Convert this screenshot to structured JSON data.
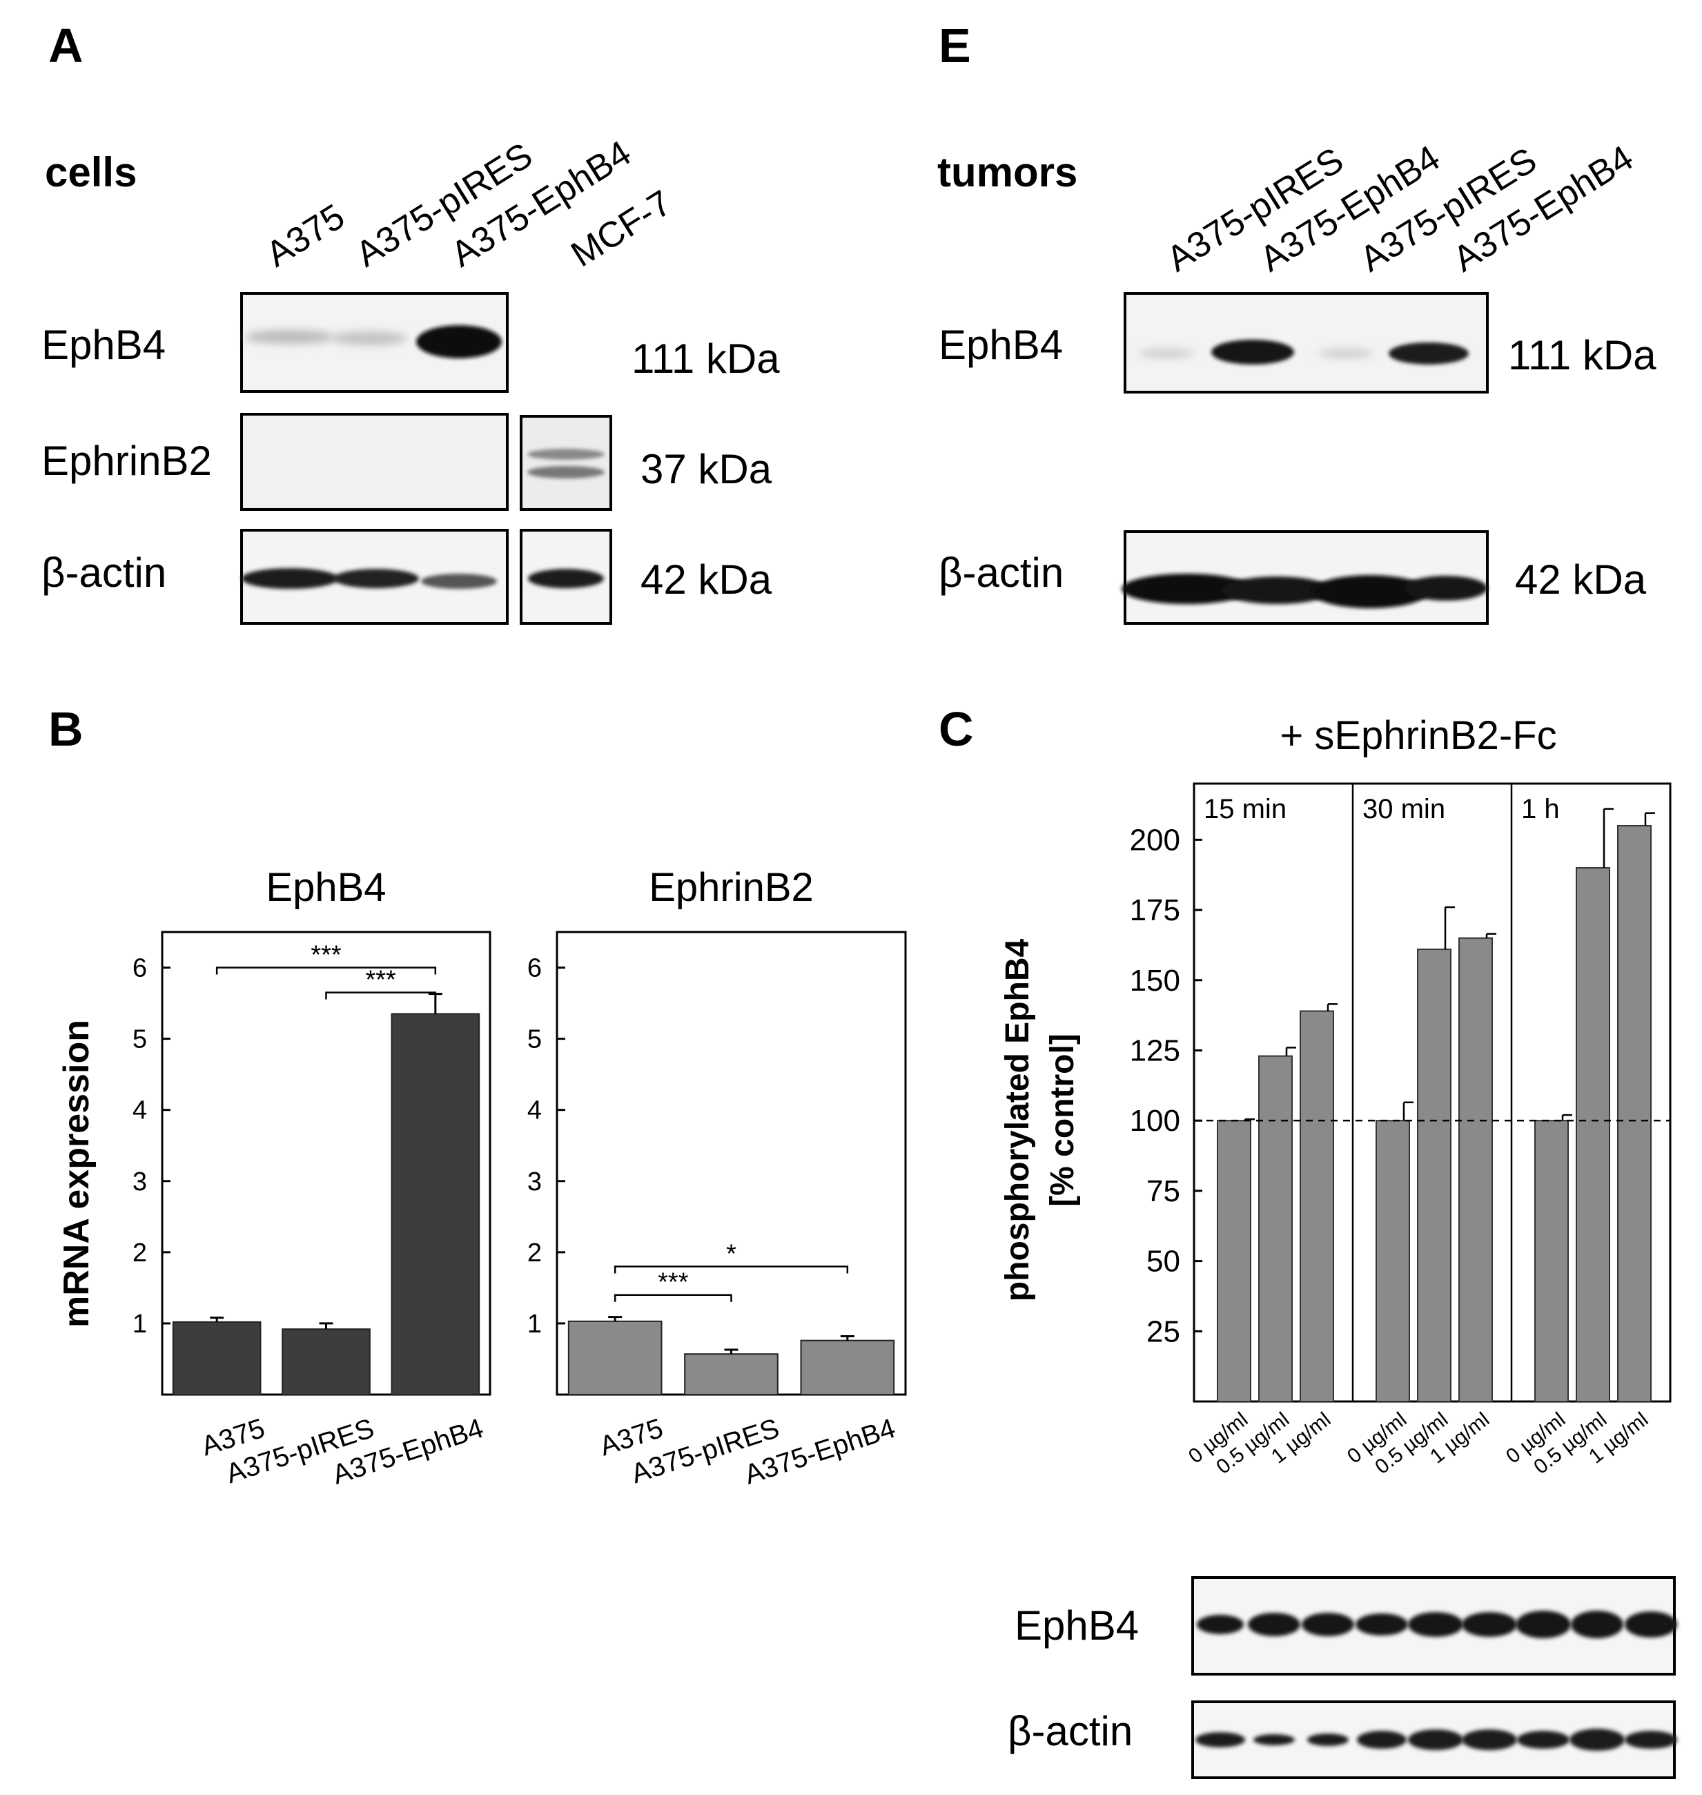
{
  "panels": {
    "A": {
      "label": "A",
      "group_label": "cells",
      "lanes": [
        "A375",
        "A375-pIRES",
        "A375-EphB4",
        "MCF-7"
      ],
      "rows": [
        {
          "name": "EphB4",
          "kda": "111 kDa"
        },
        {
          "name": "EphrinB2",
          "kda": "37 kDa"
        },
        {
          "name": "β-actin",
          "kda": "42 kDa"
        }
      ]
    },
    "E": {
      "label": "E",
      "group_label": "tumors",
      "lanes": [
        "A375-pIRES",
        "A375-EphB4",
        "A375-pIRES",
        "A375-EphB4"
      ],
      "rows": [
        {
          "name": "EphB4",
          "kda": "111 kDa"
        },
        {
          "name": "β-actin",
          "kda": "42 kDa"
        }
      ]
    },
    "B": {
      "label": "B"
    },
    "C": {
      "label": "C",
      "blot_rows": [
        {
          "name": "EphB4"
        },
        {
          "name": "β-actin"
        }
      ]
    }
  },
  "chart_data": [
    {
      "id": "B-EphB4",
      "type": "bar",
      "title": "EphB4",
      "ylabel": "mRNA expression",
      "categories": [
        "A375",
        "A375-pIRES",
        "A375-EphB4"
      ],
      "values": [
        1.02,
        0.92,
        5.35
      ],
      "errors": [
        0.06,
        0.08,
        0.28
      ],
      "yticks": [
        1,
        2,
        3,
        4,
        5,
        6
      ],
      "ylim": [
        0,
        6.5
      ],
      "bar_color": "#3d3d3d",
      "significance": [
        {
          "from": 0,
          "to": 2,
          "label": "***"
        },
        {
          "from": 1,
          "to": 2,
          "label": "***"
        }
      ]
    },
    {
      "id": "B-EphrinB2",
      "type": "bar",
      "title": "EphrinB2",
      "ylabel": "",
      "categories": [
        "A375",
        "A375-pIRES",
        "A375-EphB4"
      ],
      "values": [
        1.03,
        0.57,
        0.76
      ],
      "errors": [
        0.06,
        0.06,
        0.06
      ],
      "yticks": [
        1,
        2,
        3,
        4,
        5,
        6
      ],
      "ylim": [
        0,
        6.5
      ],
      "bar_color": "#8a8a8a",
      "significance": [
        {
          "from": 0,
          "to": 1,
          "label": "***"
        },
        {
          "from": 0,
          "to": 2,
          "label": "*"
        }
      ]
    },
    {
      "id": "C",
      "type": "bar",
      "title": "+ sEphrinB2-Fc",
      "ylabel": "phosphorylated EphB4",
      "ylabel2": "[% control]",
      "groups": [
        "15 min",
        "30 min",
        "1 h"
      ],
      "categories": [
        "0 µg/ml",
        "0.5 µg/ml",
        "1 µg/ml"
      ],
      "values": [
        [
          100,
          123,
          139
        ],
        [
          100,
          161,
          165
        ],
        [
          100,
          190,
          205
        ]
      ],
      "errors": [
        [
          0.5,
          3,
          2.5
        ],
        [
          6.5,
          15,
          1.5
        ],
        [
          2,
          21,
          4.5
        ]
      ],
      "yticks": [
        25,
        50,
        75,
        100,
        125,
        150,
        175,
        200
      ],
      "ylim": [
        0,
        220
      ],
      "reference_line": 100,
      "bar_color": "#8a8a8a"
    }
  ]
}
